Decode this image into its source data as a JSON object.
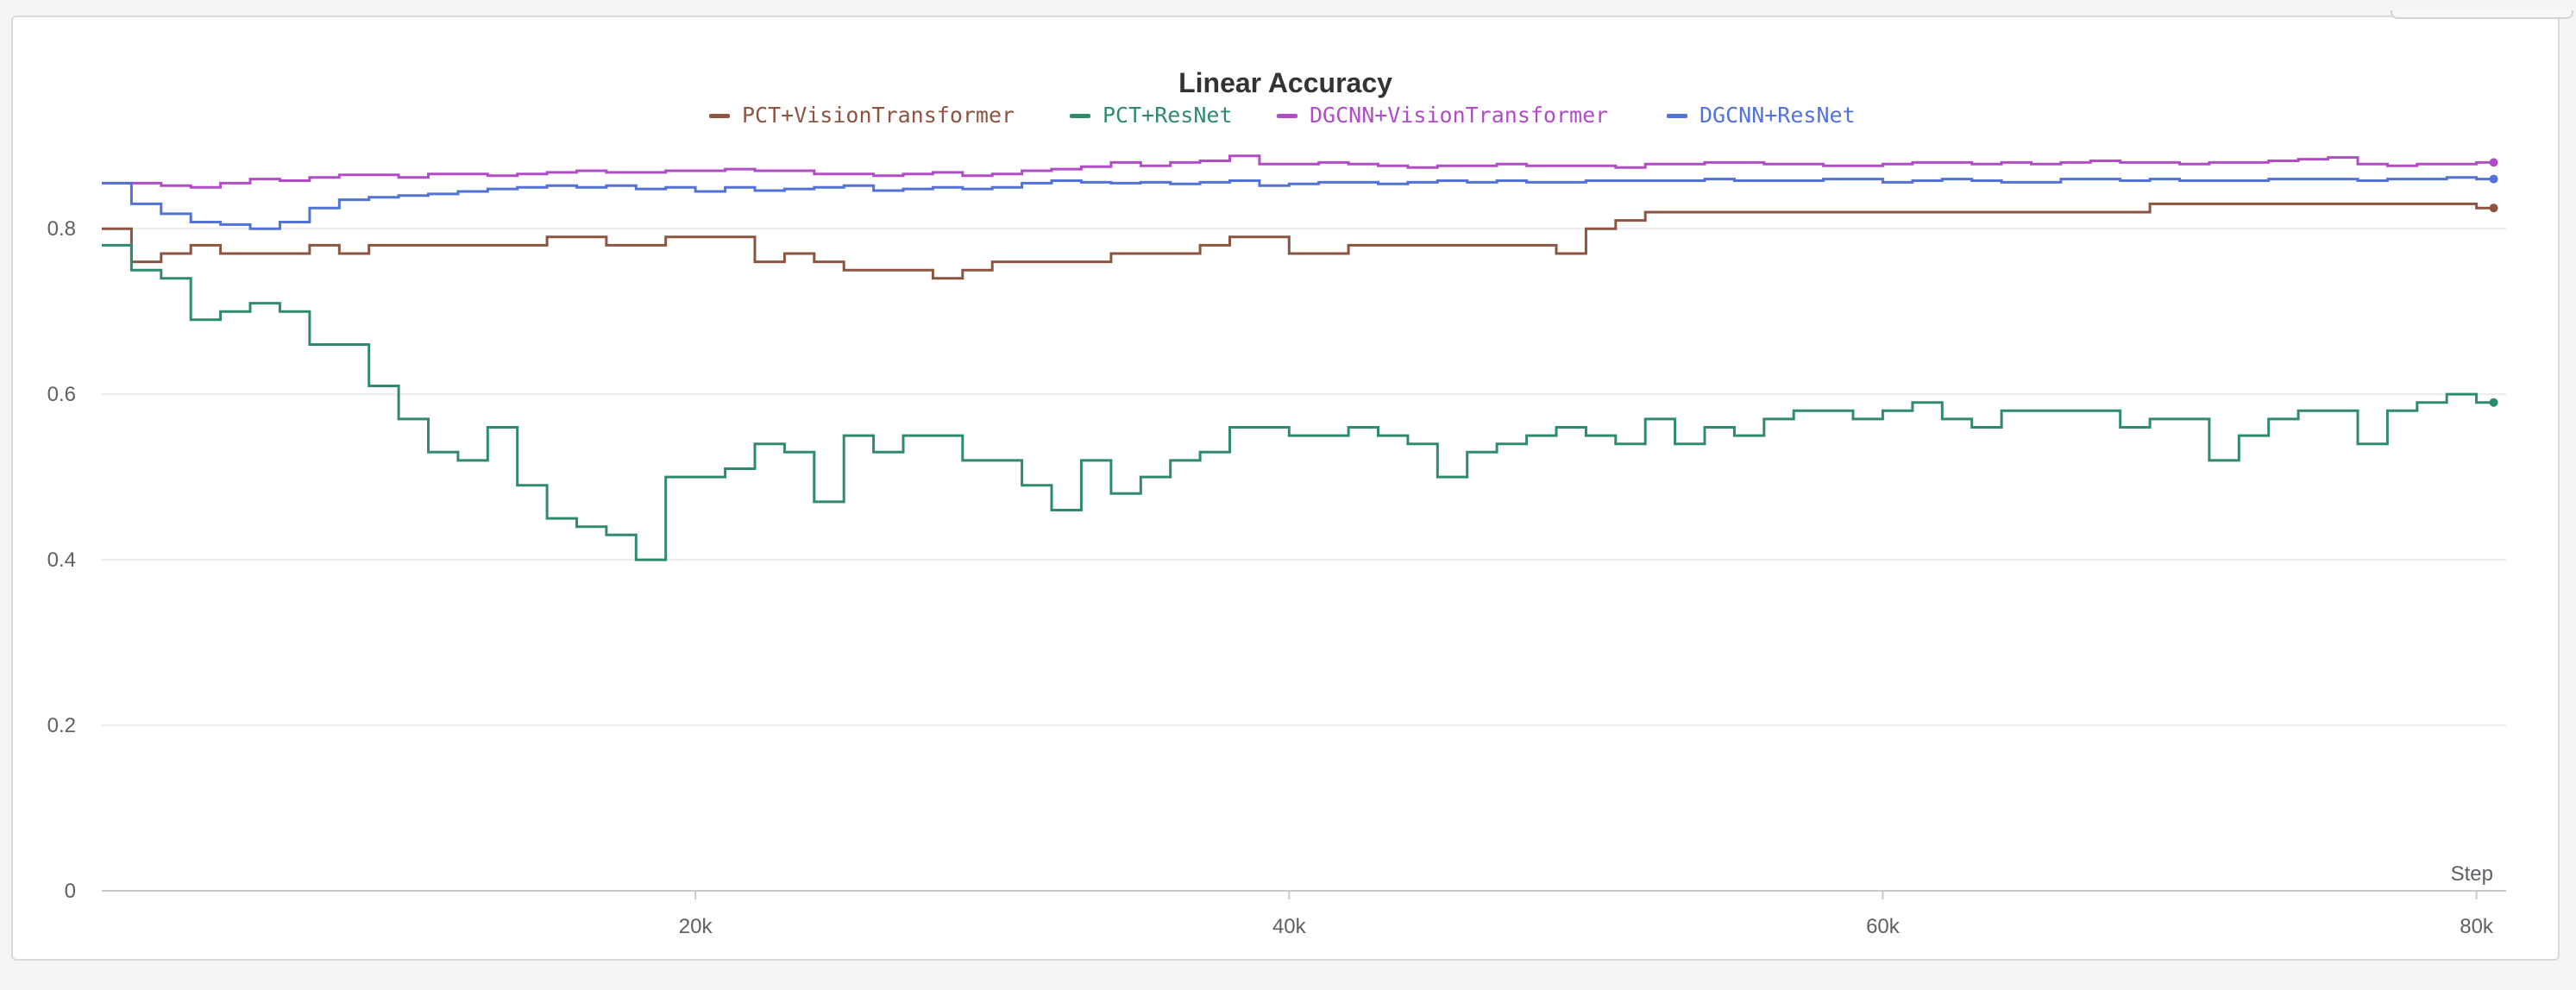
{
  "chart_data": {
    "type": "line",
    "title": "Linear Accuracy",
    "xlabel": "Step",
    "ylabel": "",
    "xlim": [
      0,
      81000
    ],
    "ylim": [
      0,
      0.92
    ],
    "x_ticks": [
      {
        "value": 20000,
        "label": "20k"
      },
      {
        "value": 40000,
        "label": "40k"
      },
      {
        "value": 60000,
        "label": "60k"
      },
      {
        "value": 80000,
        "label": "80k"
      }
    ],
    "y_ticks": [
      {
        "value": 0,
        "label": "0"
      },
      {
        "value": 0.2,
        "label": "0.2"
      },
      {
        "value": 0.4,
        "label": "0.4"
      },
      {
        "value": 0.6,
        "label": "0.6"
      },
      {
        "value": 0.8,
        "label": "0.8"
      }
    ],
    "grid": true,
    "legend_position": "top-center",
    "series": [
      {
        "name": "PCT+VisionTransformer",
        "color": "#8c5540",
        "x": [
          0,
          1000,
          2000,
          3000,
          4000,
          5000,
          6000,
          7000,
          8000,
          9000,
          10000,
          11000,
          12000,
          13000,
          14000,
          15000,
          16000,
          17000,
          18000,
          19000,
          20000,
          21000,
          22000,
          23000,
          24000,
          25000,
          26000,
          27000,
          28000,
          29000,
          30000,
          31000,
          32000,
          33000,
          34000,
          35000,
          36000,
          37000,
          38000,
          39000,
          40000,
          41000,
          42000,
          43000,
          44000,
          45000,
          46000,
          47000,
          48000,
          49000,
          50000,
          51000,
          52000,
          53000,
          54000,
          55000,
          56000,
          57000,
          58000,
          59000,
          60000,
          61000,
          62000,
          63000,
          64000,
          65000,
          66000,
          67000,
          68000,
          69000,
          70000,
          71000,
          72000,
          73000,
          74000,
          75000,
          76000,
          77000,
          78000,
          79000,
          80000
        ],
        "values": [
          0.8,
          0.76,
          0.77,
          0.78,
          0.77,
          0.77,
          0.77,
          0.78,
          0.77,
          0.78,
          0.78,
          0.78,
          0.78,
          0.78,
          0.78,
          0.79,
          0.79,
          0.78,
          0.78,
          0.79,
          0.79,
          0.79,
          0.76,
          0.77,
          0.76,
          0.75,
          0.75,
          0.75,
          0.74,
          0.75,
          0.76,
          0.76,
          0.76,
          0.76,
          0.77,
          0.77,
          0.77,
          0.78,
          0.79,
          0.79,
          0.77,
          0.77,
          0.78,
          0.78,
          0.78,
          0.78,
          0.78,
          0.78,
          0.78,
          0.77,
          0.8,
          0.81,
          0.82,
          0.82,
          0.82,
          0.82,
          0.82,
          0.82,
          0.82,
          0.82,
          0.82,
          0.82,
          0.82,
          0.82,
          0.82,
          0.82,
          0.82,
          0.82,
          0.82,
          0.83,
          0.83,
          0.83,
          0.83,
          0.83,
          0.83,
          0.83,
          0.83,
          0.83,
          0.83,
          0.83,
          0.825
        ]
      },
      {
        "name": "PCT+ResNet",
        "color": "#2f8a70",
        "x": [
          0,
          1000,
          2000,
          3000,
          4000,
          5000,
          6000,
          7000,
          8000,
          9000,
          10000,
          11000,
          12000,
          13000,
          14000,
          15000,
          16000,
          17000,
          18000,
          19000,
          20000,
          21000,
          22000,
          23000,
          24000,
          25000,
          26000,
          27000,
          28000,
          29000,
          30000,
          31000,
          32000,
          33000,
          34000,
          35000,
          36000,
          37000,
          38000,
          39000,
          40000,
          41000,
          42000,
          43000,
          44000,
          45000,
          46000,
          47000,
          48000,
          49000,
          50000,
          51000,
          52000,
          53000,
          54000,
          55000,
          56000,
          57000,
          58000,
          59000,
          60000,
          61000,
          62000,
          63000,
          64000,
          65000,
          66000,
          67000,
          68000,
          69000,
          70000,
          71000,
          72000,
          73000,
          74000,
          75000,
          76000,
          77000,
          78000,
          79000,
          80000
        ],
        "values": [
          0.78,
          0.75,
          0.74,
          0.69,
          0.7,
          0.71,
          0.7,
          0.66,
          0.66,
          0.61,
          0.57,
          0.53,
          0.52,
          0.56,
          0.49,
          0.45,
          0.44,
          0.43,
          0.4,
          0.5,
          0.5,
          0.51,
          0.54,
          0.53,
          0.47,
          0.55,
          0.53,
          0.55,
          0.55,
          0.52,
          0.52,
          0.49,
          0.46,
          0.52,
          0.48,
          0.5,
          0.52,
          0.53,
          0.56,
          0.56,
          0.55,
          0.55,
          0.56,
          0.55,
          0.54,
          0.5,
          0.53,
          0.54,
          0.55,
          0.56,
          0.55,
          0.54,
          0.57,
          0.54,
          0.56,
          0.55,
          0.57,
          0.58,
          0.58,
          0.57,
          0.58,
          0.59,
          0.57,
          0.56,
          0.58,
          0.58,
          0.58,
          0.58,
          0.56,
          0.57,
          0.57,
          0.52,
          0.55,
          0.57,
          0.58,
          0.58,
          0.54,
          0.58,
          0.59,
          0.6,
          0.59
        ]
      },
      {
        "name": "DGCNN+VisionTransformer",
        "color": "#b04dc6",
        "x": [
          0,
          1000,
          2000,
          3000,
          4000,
          5000,
          6000,
          7000,
          8000,
          9000,
          10000,
          11000,
          12000,
          13000,
          14000,
          15000,
          16000,
          17000,
          18000,
          19000,
          20000,
          21000,
          22000,
          23000,
          24000,
          25000,
          26000,
          27000,
          28000,
          29000,
          30000,
          31000,
          32000,
          33000,
          34000,
          35000,
          36000,
          37000,
          38000,
          39000,
          40000,
          41000,
          42000,
          43000,
          44000,
          45000,
          46000,
          47000,
          48000,
          49000,
          50000,
          51000,
          52000,
          53000,
          54000,
          55000,
          56000,
          57000,
          58000,
          59000,
          60000,
          61000,
          62000,
          63000,
          64000,
          65000,
          66000,
          67000,
          68000,
          69000,
          70000,
          71000,
          72000,
          73000,
          74000,
          75000,
          76000,
          77000,
          78000,
          79000,
          80000
        ],
        "values": [
          0.855,
          0.855,
          0.852,
          0.85,
          0.855,
          0.86,
          0.858,
          0.862,
          0.865,
          0.865,
          0.862,
          0.866,
          0.866,
          0.864,
          0.866,
          0.868,
          0.87,
          0.868,
          0.868,
          0.87,
          0.87,
          0.872,
          0.87,
          0.87,
          0.866,
          0.866,
          0.864,
          0.866,
          0.868,
          0.864,
          0.866,
          0.87,
          0.872,
          0.875,
          0.88,
          0.876,
          0.88,
          0.882,
          0.888,
          0.878,
          0.878,
          0.88,
          0.878,
          0.876,
          0.874,
          0.876,
          0.876,
          0.878,
          0.876,
          0.876,
          0.876,
          0.874,
          0.878,
          0.878,
          0.88,
          0.88,
          0.878,
          0.878,
          0.876,
          0.876,
          0.878,
          0.88,
          0.88,
          0.878,
          0.88,
          0.878,
          0.88,
          0.882,
          0.88,
          0.88,
          0.878,
          0.88,
          0.88,
          0.882,
          0.884,
          0.886,
          0.878,
          0.876,
          0.878,
          0.878,
          0.88
        ]
      },
      {
        "name": "DGCNN+ResNet",
        "color": "#5272d6",
        "x": [
          0,
          1000,
          2000,
          3000,
          4000,
          5000,
          6000,
          7000,
          8000,
          9000,
          10000,
          11000,
          12000,
          13000,
          14000,
          15000,
          16000,
          17000,
          18000,
          19000,
          20000,
          21000,
          22000,
          23000,
          24000,
          25000,
          26000,
          27000,
          28000,
          29000,
          30000,
          31000,
          32000,
          33000,
          34000,
          35000,
          36000,
          37000,
          38000,
          39000,
          40000,
          41000,
          42000,
          43000,
          44000,
          45000,
          46000,
          47000,
          48000,
          49000,
          50000,
          51000,
          52000,
          53000,
          54000,
          55000,
          56000,
          57000,
          58000,
          59000,
          60000,
          61000,
          62000,
          63000,
          64000,
          65000,
          66000,
          67000,
          68000,
          69000,
          70000,
          71000,
          72000,
          73000,
          74000,
          75000,
          76000,
          77000,
          78000,
          79000,
          80000
        ],
        "values": [
          0.855,
          0.83,
          0.818,
          0.808,
          0.805,
          0.8,
          0.808,
          0.825,
          0.835,
          0.838,
          0.84,
          0.842,
          0.845,
          0.848,
          0.85,
          0.852,
          0.85,
          0.852,
          0.848,
          0.85,
          0.845,
          0.85,
          0.846,
          0.848,
          0.85,
          0.852,
          0.846,
          0.848,
          0.85,
          0.848,
          0.85,
          0.855,
          0.858,
          0.856,
          0.855,
          0.856,
          0.854,
          0.856,
          0.858,
          0.852,
          0.854,
          0.856,
          0.856,
          0.854,
          0.856,
          0.858,
          0.856,
          0.858,
          0.856,
          0.856,
          0.858,
          0.858,
          0.858,
          0.858,
          0.86,
          0.858,
          0.858,
          0.858,
          0.86,
          0.86,
          0.856,
          0.858,
          0.86,
          0.858,
          0.856,
          0.856,
          0.86,
          0.86,
          0.858,
          0.86,
          0.858,
          0.858,
          0.858,
          0.86,
          0.86,
          0.86,
          0.858,
          0.86,
          0.86,
          0.862,
          0.86
        ]
      }
    ]
  }
}
